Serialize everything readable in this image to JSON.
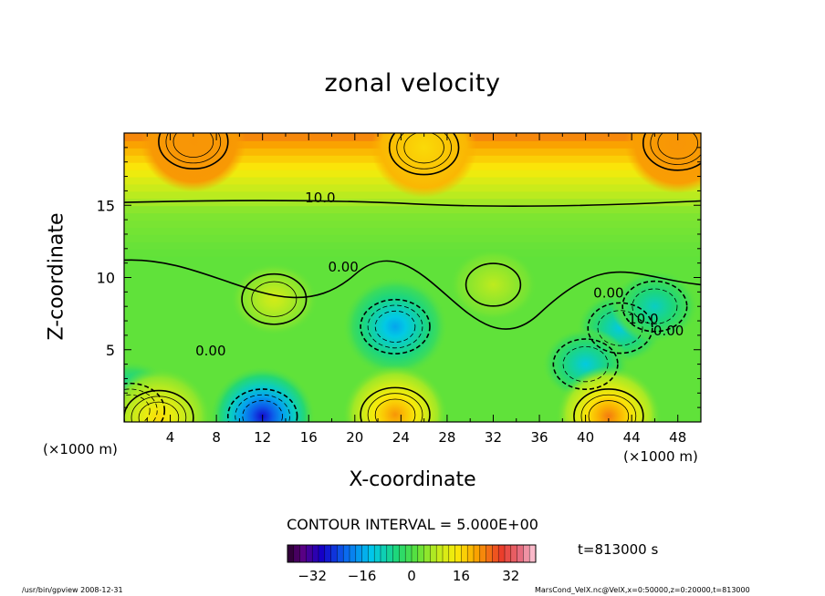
{
  "chart_data": {
    "type": "heatmap",
    "title": "zonal velocity",
    "xlabel": "X-coordinate",
    "ylabel": "Z-coordinate",
    "x_unit": "(×1000 m)",
    "xlim": [
      0,
      50
    ],
    "ylim": [
      0,
      20
    ],
    "x_ticks": [
      4,
      8,
      12,
      16,
      20,
      24,
      28,
      32,
      36,
      40,
      44,
      48
    ],
    "y_ticks": [
      5,
      10,
      15
    ],
    "contour_interval_label": "CONTOUR INTERVAL = 5.000E+00",
    "contour_labels": [
      {
        "text": "10.0",
        "x": 17.0,
        "z": 15.2
      },
      {
        "text": "0.00",
        "x": 19.0,
        "z": 10.4
      },
      {
        "text": "0.00",
        "x": 42.0,
        "z": 8.6
      },
      {
        "text": "10.0",
        "x": 45.0,
        "z": 6.8
      },
      {
        "text": "0.00",
        "x": 47.2,
        "z": 6.0
      },
      {
        "text": "0.00",
        "x": 7.5,
        "z": 4.6
      }
    ],
    "features": [
      {
        "x": 23.5,
        "z": 6.6,
        "value": -16
      },
      {
        "x": 12.0,
        "z": 0.4,
        "value": -28
      },
      {
        "x": 0.5,
        "z": 0.8,
        "value": -18
      },
      {
        "x": 43.0,
        "z": 6.5,
        "value": -12
      },
      {
        "x": 40.0,
        "z": 4.0,
        "value": -12
      },
      {
        "x": 46.0,
        "z": 8.0,
        "value": -10
      },
      {
        "x": 23.5,
        "z": 0.5,
        "value": 22
      },
      {
        "x": 42.0,
        "z": 0.4,
        "value": 24
      },
      {
        "x": 3.0,
        "z": 0.3,
        "value": 16
      },
      {
        "x": 13.0,
        "z": 8.5,
        "value": 10
      },
      {
        "x": 32.0,
        "z": 9.5,
        "value": 8
      },
      {
        "x": 6.0,
        "z": 19.4,
        "value": 22
      },
      {
        "x": 48.0,
        "z": 19.3,
        "value": 22
      },
      {
        "x": 26.0,
        "z": 19.0,
        "value": 16
      }
    ],
    "colorbar": {
      "range": [
        -40,
        40
      ],
      "ticks": [
        -32,
        -16,
        0,
        16,
        32
      ],
      "tick_labels": [
        "−32",
        "−16",
        "0",
        "16",
        "32"
      ]
    },
    "time_label": "t=813000 s"
  },
  "footer": {
    "left": "/usr/bin/gpview  2008-12-31",
    "right": "MarsCond_VelX.nc@VelX,x=0:50000,z=0:20000,t=813000"
  }
}
